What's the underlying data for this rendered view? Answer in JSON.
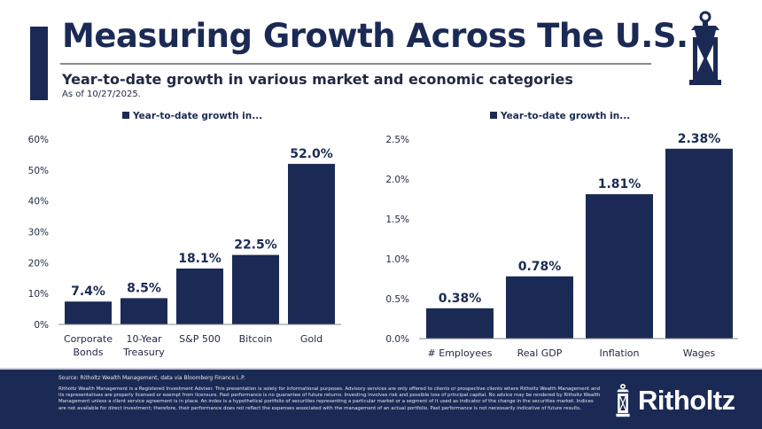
{
  "header": {
    "title": "Measuring Growth Across The U.S.",
    "subtitle": "Year-to-date growth in various market and economic categories",
    "as_of": "As of 10/27/2025.",
    "logo_icon": "lantern-icon"
  },
  "colors": {
    "navy": "#1b2a55",
    "axis_gray": "#8a8a8a",
    "text_dark": "#222a44"
  },
  "chart_data": [
    {
      "type": "bar",
      "title": "",
      "legend": "Year-to-date growth in...",
      "legend_position": "top-center",
      "categories": [
        "Corporate Bonds",
        "10-Year Treasury",
        "S&P 500",
        "Bitcoin",
        "Gold"
      ],
      "category_lines": [
        [
          "Corporate",
          "Bonds"
        ],
        [
          "10-Year",
          "Treasury"
        ],
        [
          "S&P 500"
        ],
        [
          "Bitcoin"
        ],
        [
          "Gold"
        ]
      ],
      "values": [
        7.4,
        8.5,
        18.1,
        22.5,
        52.0
      ],
      "data_labels": [
        "7.4%",
        "8.5%",
        "18.1%",
        "22.5%",
        "52.0%"
      ],
      "xlabel": "",
      "ylabel": "",
      "ylim": [
        0,
        60
      ],
      "yticks": [
        0,
        10,
        20,
        30,
        40,
        50,
        60
      ],
      "ytick_labels": [
        "0%",
        "10%",
        "20%",
        "30%",
        "40%",
        "50%",
        "60%"
      ],
      "grid": false
    },
    {
      "type": "bar",
      "title": "",
      "legend": "Year-to-date growth in...",
      "legend_position": "top-center",
      "categories": [
        "# Employees",
        "Real GDP",
        "Inflation",
        "Wages"
      ],
      "category_lines": [
        [
          "# Employees"
        ],
        [
          "Real GDP"
        ],
        [
          "Inflation"
        ],
        [
          "Wages"
        ]
      ],
      "values": [
        0.38,
        0.78,
        1.81,
        2.38
      ],
      "data_labels": [
        "0.38%",
        "0.78%",
        "1.81%",
        "2.38%"
      ],
      "xlabel": "",
      "ylabel": "",
      "ylim": [
        0,
        2.5
      ],
      "yticks": [
        0,
        0.5,
        1.0,
        1.5,
        2.0,
        2.5
      ],
      "ytick_labels": [
        "0.0%",
        "0.5%",
        "1.0%",
        "1.5%",
        "2.0%",
        "2.5%"
      ],
      "grid": false
    }
  ],
  "footer": {
    "source": "Source: Ritholtz Wealth Management, data via Bloomberg Finance L.P.",
    "disclaimer": "Ritholtz Wealth Management is a Registered Investment Adviser. This presentation is solely for informational purposes. Advisory services are only offered to clients or prospective clients where Ritholtz Wealth Management and its representatives are properly licensed or exempt from licensure. Past performance is no guarantee of future returns. Investing involves risk and possible loss of principal capital. No advice may be rendered by Ritholtz Wealth Management unless a client service agreement is in place. An index is a hypothetical portfolio of securities representing a particular market or a segment of it used as indicator of the change in the securities market. Indices are not available for direct investment; therefore, their performance does not reflect the expenses associated with the management of an actual portfolio. Past performance is not necessarily indicative of future results.",
    "brand_name": "Ritholtz",
    "brand_icon": "lantern-icon"
  }
}
